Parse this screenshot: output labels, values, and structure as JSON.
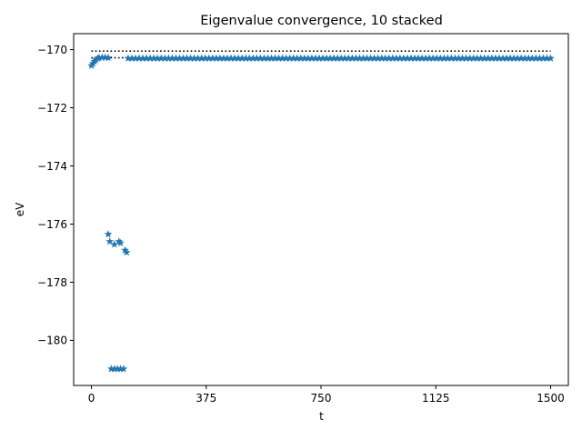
{
  "chart_data": {
    "type": "scatter",
    "title": "Eigenvalue convergence, 10 stacked",
    "xlabel": "t",
    "ylabel": "eV",
    "xlim": [
      -58,
      1558
    ],
    "ylim": [
      -181.55,
      -169.45
    ],
    "xticks": [
      0,
      375,
      750,
      1125,
      1500
    ],
    "xtick_labels": [
      "0",
      "375",
      "750",
      "1125",
      "1500"
    ],
    "yticks": [
      -170,
      -172,
      -174,
      -176,
      -178,
      -180
    ],
    "ytick_labels": [
      "−170",
      "−172",
      "−174",
      "−176",
      "−178",
      "−180"
    ],
    "grid": false,
    "series": [
      {
        "name": "reference (dotted)",
        "color": "#000000",
        "style": "dotted-line",
        "lines": [
          {
            "x": [
              0,
              1500
            ],
            "y": [
              -170.05,
              -170.05
            ]
          },
          {
            "x": [
              0,
              120
            ],
            "y": [
              -170.28,
              -170.28
            ]
          }
        ]
      },
      {
        "name": "eigenvalues (star markers)",
        "color": "#1f77b4",
        "marker": "star",
        "plateau": {
          "x_start": 120,
          "x_end": 1500,
          "x_step": 12,
          "y": -170.3
        },
        "points": [
          {
            "x": 0,
            "y": -170.55
          },
          {
            "x": 5,
            "y": -170.48
          },
          {
            "x": 10,
            "y": -170.4
          },
          {
            "x": 15,
            "y": -170.35
          },
          {
            "x": 20,
            "y": -170.3
          },
          {
            "x": 25,
            "y": -170.28
          },
          {
            "x": 35,
            "y": -170.27
          },
          {
            "x": 45,
            "y": -170.27
          },
          {
            "x": 55,
            "y": -170.28
          },
          {
            "x": 55,
            "y": -176.35
          },
          {
            "x": 60,
            "y": -176.6
          },
          {
            "x": 75,
            "y": -176.7
          },
          {
            "x": 90,
            "y": -176.6
          },
          {
            "x": 95,
            "y": -176.65
          },
          {
            "x": 110,
            "y": -176.9
          },
          {
            "x": 115,
            "y": -176.97
          },
          {
            "x": 65,
            "y": -180.98
          },
          {
            "x": 75,
            "y": -180.98
          },
          {
            "x": 85,
            "y": -180.98
          },
          {
            "x": 95,
            "y": -180.98
          },
          {
            "x": 105,
            "y": -180.98
          }
        ]
      }
    ]
  }
}
